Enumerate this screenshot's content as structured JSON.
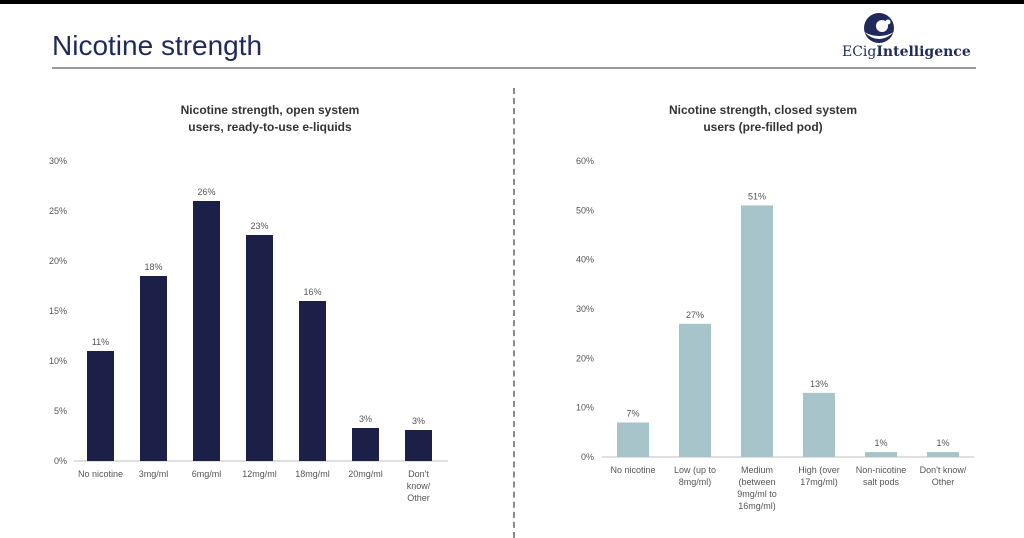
{
  "page": {
    "title": "Nicotine strength",
    "logo_text_regular": "ECig",
    "logo_text_bold": "Intelligence"
  },
  "colors": {
    "title": "#1f2a5a",
    "open_bar": "#1c2048",
    "closed_bar": "#a8c4cb"
  },
  "chart_data": [
    {
      "type": "bar",
      "title": "Nicotine strength, open system users, ready-to-use e-liquids",
      "title_lines": [
        "Nicotine strength, open system",
        "users, ready-to-use e-liquids"
      ],
      "categories": [
        "No nicotine",
        "3mg/ml",
        "6mg/ml",
        "12mg/ml",
        "18mg/ml",
        "20mg/ml",
        "Don't know/ Other"
      ],
      "category_lines": [
        [
          "No nicotine"
        ],
        [
          "3mg/ml"
        ],
        [
          "6mg/ml"
        ],
        [
          "12mg/ml"
        ],
        [
          "18mg/ml"
        ],
        [
          "20mg/ml"
        ],
        [
          "Don't",
          "know/",
          "Other"
        ]
      ],
      "values": [
        11,
        18.5,
        26,
        22.6,
        16,
        3.3,
        3.1
      ],
      "value_labels": [
        "11%",
        "18%",
        "26%",
        "23%",
        "16%",
        "3%",
        "3%"
      ],
      "yticks": [
        "0%",
        "5%",
        "10%",
        "15%",
        "20%",
        "25%",
        "30%"
      ],
      "ylim": [
        0,
        30
      ],
      "grid": false,
      "legend": "none",
      "color": "#1c2048"
    },
    {
      "type": "bar",
      "title": "Nicotine strength, closed system users (pre-filled pod)",
      "title_lines": [
        "Nicotine strength, closed system",
        "users (pre-filled pod)"
      ],
      "categories": [
        "No nicotine",
        "Low (up to 8mg/ml)",
        "Medium (between 9mg/ml to 16mg/ml)",
        "High (over 17mg/ml)",
        "Non-nicotine salt pods",
        "Don't know/ Other"
      ],
      "category_lines": [
        [
          "No nicotine"
        ],
        [
          "Low (up to",
          "8mg/ml)"
        ],
        [
          "Medium",
          "(between",
          "9mg/ml to",
          "16mg/ml)"
        ],
        [
          "High (over",
          "17mg/ml)"
        ],
        [
          "Non-nicotine",
          "salt pods"
        ],
        [
          "Don't know/",
          "Other"
        ]
      ],
      "values": [
        7,
        27,
        51,
        13,
        1,
        1
      ],
      "value_labels": [
        "7%",
        "27%",
        "51%",
        "13%",
        "1%",
        "1%"
      ],
      "yticks": [
        "0%",
        "10%",
        "20%",
        "30%",
        "40%",
        "50%",
        "60%"
      ],
      "ylim": [
        0,
        60
      ],
      "grid": false,
      "legend": "none",
      "color": "#a8c4cb"
    }
  ]
}
